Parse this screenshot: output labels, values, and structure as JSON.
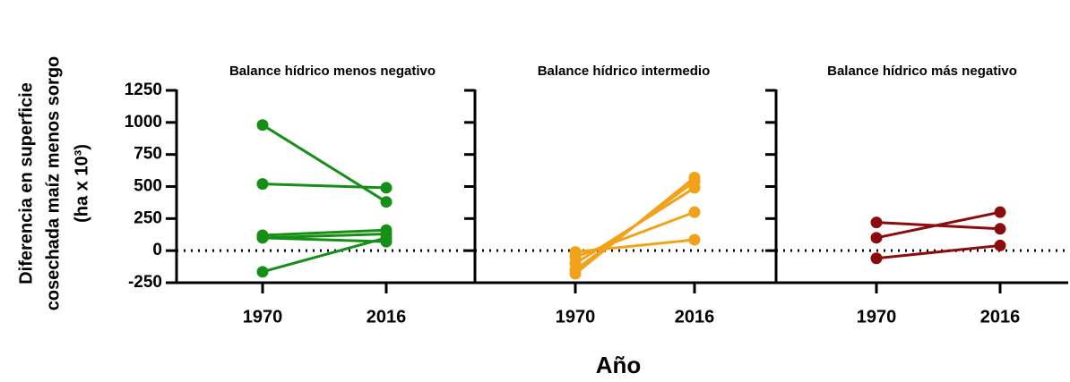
{
  "y_label": [
    "Diferencia en superficie",
    "cosechada maíz menos sorgo",
    "(ha x 10³)"
  ],
  "x_label": "Año",
  "chart_data": [
    {
      "type": "line",
      "title": "Balance hídrico menos negativo",
      "categories": [
        "1970",
        "2016"
      ],
      "ylim": [
        -250,
        1250
      ],
      "yticks": [
        -250,
        0,
        250,
        500,
        750,
        1000,
        1250
      ],
      "hline": 0,
      "series": [
        {
          "color": "#168f16",
          "values": [
            980,
            380
          ]
        },
        {
          "color": "#168f16",
          "values": [
            520,
            490
          ]
        },
        {
          "color": "#168f16",
          "values": [
            120,
            160
          ]
        },
        {
          "color": "#168f16",
          "values": [
            100,
            130
          ]
        },
        {
          "color": "#168f16",
          "values": [
            100,
            70
          ]
        },
        {
          "color": "#168f16",
          "values": [
            -165,
            100
          ]
        }
      ]
    },
    {
      "type": "line",
      "title": "Balance hídrico intermedio",
      "categories": [
        "1970",
        "2016"
      ],
      "ylim": [
        -250,
        1250
      ],
      "yticks": [
        -250,
        0,
        250,
        500,
        750,
        1000,
        1250
      ],
      "hline": 0,
      "series": [
        {
          "color": "#f2a219",
          "values": [
            -10,
            85
          ]
        },
        {
          "color": "#f2a219",
          "values": [
            -50,
            300
          ]
        },
        {
          "color": "#f2a219",
          "values": [
            -100,
            490
          ]
        },
        {
          "color": "#f2a219",
          "values": [
            -150,
            540
          ]
        },
        {
          "color": "#f2a219",
          "values": [
            -180,
            570
          ]
        }
      ]
    },
    {
      "type": "line",
      "title": "Balance hídrico más negativo",
      "categories": [
        "1970",
        "2016"
      ],
      "ylim": [
        -250,
        1250
      ],
      "yticks": [
        -250,
        0,
        250,
        500,
        750,
        1000,
        1250
      ],
      "hline": 0,
      "series": [
        {
          "color": "#8b0c0c",
          "values": [
            220,
            170
          ]
        },
        {
          "color": "#8b0c0c",
          "values": [
            100,
            300
          ]
        },
        {
          "color": "#8b0c0c",
          "values": [
            -60,
            40
          ]
        }
      ]
    }
  ]
}
